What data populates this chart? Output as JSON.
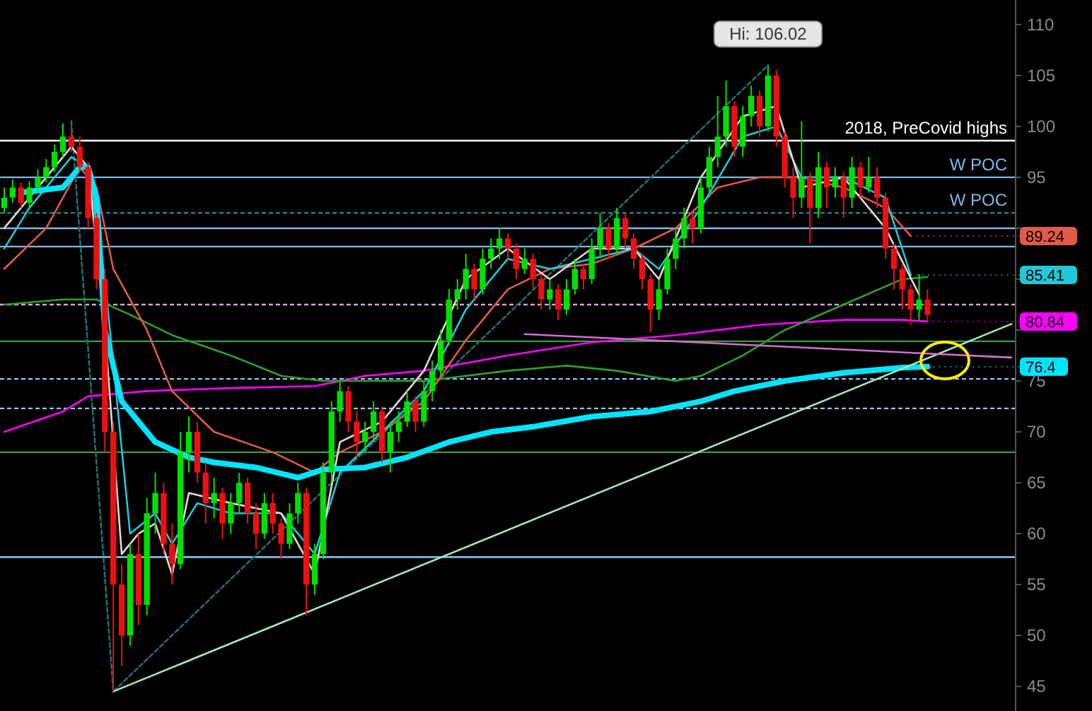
{
  "chart_data": {
    "type": "candlestick",
    "categories": [
      null,
      null,
      null,
      null,
      null,
      null,
      null,
      null,
      null,
      null,
      null,
      null,
      null,
      null,
      null,
      null,
      null,
      null,
      null,
      null,
      null,
      null,
      null,
      null,
      null,
      null,
      null,
      null,
      null,
      null,
      null,
      null,
      null,
      null,
      null,
      null,
      null,
      null,
      null,
      null,
      null,
      null,
      null,
      null,
      null,
      null,
      null,
      null,
      null,
      null,
      null,
      null,
      null,
      null,
      null,
      null,
      null,
      null,
      null,
      null,
      null,
      null,
      null,
      null,
      null,
      null,
      null,
      null,
      null,
      null,
      null,
      null,
      null,
      null,
      null,
      null,
      null,
      null,
      null,
      null,
      null,
      null,
      null,
      null,
      null,
      null,
      null,
      null,
      null,
      null,
      null,
      null,
      null,
      null,
      null,
      null,
      null,
      null,
      null,
      null,
      null,
      null,
      null,
      null,
      null,
      null,
      null,
      null,
      null,
      null,
      null,
      null,
      null,
      null,
      null,
      null,
      null,
      null,
      null,
      null,
      null
    ],
    "ohlc": [
      [
        92,
        94,
        91.5,
        93
      ],
      [
        93,
        94.8,
        92.5,
        94
      ],
      [
        94,
        94.5,
        92,
        92.5
      ],
      [
        92.5,
        94.6,
        92,
        94
      ],
      [
        94,
        95.8,
        93.5,
        95
      ],
      [
        95,
        96.8,
        94.5,
        96
      ],
      [
        96,
        98.2,
        95.5,
        97.5
      ],
      [
        97.5,
        100.3,
        97,
        99
      ],
      [
        99,
        100,
        97.5,
        98
      ],
      [
        98,
        99,
        95.5,
        96
      ],
      [
        96,
        96.5,
        90,
        91
      ],
      [
        91,
        91.5,
        84,
        85
      ],
      [
        85,
        86,
        68,
        70
      ],
      [
        70,
        71,
        44.5,
        55
      ],
      [
        55,
        57,
        47,
        50
      ],
      [
        50,
        59,
        49,
        58
      ],
      [
        58,
        60,
        51,
        53
      ],
      [
        53,
        63.5,
        52,
        62
      ],
      [
        62,
        66,
        60,
        64
      ],
      [
        64,
        65,
        58,
        59
      ],
      [
        59,
        61,
        55,
        57
      ],
      [
        57,
        70,
        56.5,
        68
      ],
      [
        68,
        71.5,
        66,
        70
      ],
      [
        70,
        71,
        65,
        66
      ],
      [
        66,
        67,
        61,
        63
      ],
      [
        63,
        65.5,
        61.5,
        64
      ],
      [
        64,
        64.5,
        59.5,
        61
      ],
      [
        61,
        64,
        60,
        63
      ],
      [
        63,
        66,
        62,
        65
      ],
      [
        65,
        65.5,
        61,
        62
      ],
      [
        62,
        63,
        58.5,
        60
      ],
      [
        60,
        64,
        59.5,
        63
      ],
      [
        63,
        64,
        60,
        61
      ],
      [
        61,
        61.5,
        57.5,
        59
      ],
      [
        59,
        63,
        58.5,
        62
      ],
      [
        62,
        65,
        61,
        64
      ],
      [
        64,
        64.5,
        52,
        55
      ],
      [
        55,
        59,
        54,
        58
      ],
      [
        58,
        67,
        57.5,
        66
      ],
      [
        66,
        73,
        65,
        72
      ],
      [
        72,
        75,
        71,
        74
      ],
      [
        74,
        74.5,
        70,
        71
      ],
      [
        71,
        72,
        67.5,
        69
      ],
      [
        69,
        71,
        68,
        70
      ],
      [
        70,
        73,
        69,
        72
      ],
      [
        72,
        72.5,
        67,
        68
      ],
      [
        68,
        71,
        66,
        70
      ],
      [
        70,
        72,
        69,
        71
      ],
      [
        71,
        74,
        70.5,
        73
      ],
      [
        73,
        73.5,
        70,
        71
      ],
      [
        71,
        75,
        70.5,
        74
      ],
      [
        74,
        77,
        73,
        76
      ],
      [
        76,
        80,
        75.5,
        79
      ],
      [
        79,
        84,
        78.5,
        83
      ],
      [
        83,
        85,
        82,
        84
      ],
      [
        84,
        87.5,
        83,
        86
      ],
      [
        86,
        86.5,
        83,
        84
      ],
      [
        84,
        88,
        83.5,
        87
      ],
      [
        87,
        89,
        86,
        88
      ],
      [
        88,
        90,
        87,
        89
      ],
      [
        89,
        89.5,
        87,
        88
      ],
      [
        88,
        88.5,
        85,
        86
      ],
      [
        86,
        88,
        85.5,
        87
      ],
      [
        87,
        87.5,
        84,
        85
      ],
      [
        85,
        85.5,
        82,
        83
      ],
      [
        83,
        85,
        82,
        84
      ],
      [
        84,
        84.5,
        81,
        82
      ],
      [
        82,
        85,
        81.5,
        84
      ],
      [
        84,
        87,
        83.5,
        86
      ],
      [
        86,
        86.5,
        84,
        85
      ],
      [
        85,
        89,
        84.5,
        88
      ],
      [
        88,
        91.5,
        87,
        90
      ],
      [
        90,
        90.5,
        87,
        88
      ],
      [
        88,
        92,
        87.5,
        91
      ],
      [
        91,
        91.5,
        88,
        89
      ],
      [
        89,
        89.5,
        86,
        87
      ],
      [
        87,
        87.5,
        84,
        85
      ],
      [
        85,
        85.5,
        79.8,
        82
      ],
      [
        82,
        85,
        81,
        84
      ],
      [
        84,
        88,
        83.5,
        87
      ],
      [
        87,
        90,
        86,
        89
      ],
      [
        89,
        92,
        88,
        91
      ],
      [
        91,
        91.5,
        88.5,
        90
      ],
      [
        90,
        95,
        89.5,
        94
      ],
      [
        94,
        98,
        93,
        97
      ],
      [
        97,
        103,
        96,
        99
      ],
      [
        99,
        104.5,
        98,
        102
      ],
      [
        102,
        102.5,
        97,
        98
      ],
      [
        98,
        102,
        97,
        101
      ],
      [
        101,
        104,
        100,
        103
      ],
      [
        103,
        103.5,
        99,
        100
      ],
      [
        100,
        106.02,
        99.5,
        105
      ],
      [
        105,
        105.5,
        98,
        99
      ],
      [
        99,
        99.5,
        94,
        95
      ],
      [
        95,
        96,
        91,
        93
      ],
      [
        93,
        100.5,
        92,
        95
      ],
      [
        95,
        95.5,
        88.5,
        92
      ],
      [
        92,
        97.5,
        91,
        96
      ],
      [
        96,
        96.5,
        92,
        94
      ],
      [
        94,
        96,
        93,
        95
      ],
      [
        95,
        95.5,
        91,
        93
      ],
      [
        93,
        97,
        92,
        96
      ],
      [
        96,
        96.5,
        93,
        94
      ],
      [
        94,
        97,
        93.5,
        95
      ],
      [
        95,
        96,
        92,
        93
      ],
      [
        93,
        93.5,
        87,
        88
      ],
      [
        88,
        88.5,
        84,
        86
      ],
      [
        86,
        86.5,
        82,
        84
      ],
      [
        84,
        84.5,
        80.5,
        82
      ],
      [
        82,
        85.5,
        81,
        83
      ],
      [
        83,
        84,
        81,
        81.5
      ],
      null,
      null,
      null,
      null,
      null,
      null,
      null,
      null,
      null,
      null
    ],
    "series": [
      {
        "type": "line",
        "color": "#1f6f6f",
        "line_style": "dashed",
        "values": [
          null,
          null,
          null,
          null,
          null,
          null,
          null,
          null,
          100.5,
          null,
          null,
          null,
          null,
          44.5,
          null,
          null,
          null,
          null,
          null,
          null,
          null,
          null,
          null,
          null,
          null,
          null,
          null,
          null,
          null,
          null,
          null,
          null,
          null,
          null,
          null,
          null,
          null,
          null,
          null,
          null,
          null,
          null,
          null,
          null,
          null,
          null,
          null,
          null,
          null,
          null,
          null,
          null,
          null,
          null,
          null,
          null,
          null,
          null,
          null,
          null,
          null,
          null,
          null,
          null,
          null,
          null,
          null,
          null,
          null,
          null,
          null,
          null,
          null,
          null,
          null,
          null,
          null,
          null,
          null,
          null,
          null,
          null,
          null,
          null,
          null,
          null,
          null,
          null,
          null,
          null,
          null,
          106,
          null,
          null,
          null,
          null,
          null,
          null,
          null,
          null,
          null,
          null,
          null,
          null,
          null,
          null,
          null,
          null,
          null,
          null,
          null,
          null,
          null,
          null,
          null,
          null,
          null,
          null,
          null,
          null,
          null
        ]
      },
      {
        "type": "line",
        "color": "#ff00ff",
        "values": [
          70,
          null,
          null,
          null,
          null,
          null,
          null,
          72,
          null,
          null,
          73.5,
          null,
          null,
          null,
          null,
          null,
          null,
          74,
          null,
          null,
          null,
          null,
          null,
          null,
          null,
          null,
          null,
          74.3,
          null,
          null,
          null,
          null,
          null,
          null,
          null,
          null,
          null,
          74.5,
          null,
          null,
          null,
          null,
          null,
          75.5,
          null,
          null,
          null,
          null,
          null,
          null,
          76,
          null,
          null,
          null,
          null,
          null,
          null,
          null,
          null,
          null,
          77.5,
          null,
          null,
          null,
          null,
          null,
          null,
          null,
          null,
          null,
          78.8,
          null,
          null,
          null,
          null,
          null,
          null,
          null,
          null,
          null,
          79.5,
          null,
          null,
          null,
          null,
          null,
          null,
          null,
          null,
          null,
          80.5,
          null,
          null,
          null,
          null,
          null,
          null,
          null,
          null,
          null,
          81,
          null,
          null,
          null,
          null,
          null,
          null,
          81,
          null,
          null,
          80.84,
          null,
          null,
          null,
          null,
          null,
          null,
          null,
          null,
          null,
          null
        ],
        "value_labels": [
          null,
          null,
          null,
          null,
          null,
          null,
          null,
          null,
          null,
          null,
          null,
          null,
          null,
          null,
          null,
          null,
          null,
          null,
          null,
          null,
          null,
          null,
          null,
          null,
          null,
          null,
          null,
          null,
          null,
          null,
          null,
          null,
          null,
          null,
          null,
          null,
          null,
          null,
          null,
          null,
          null,
          null,
          null,
          null,
          null,
          null,
          null,
          null,
          null,
          null,
          null,
          null,
          null,
          null,
          null,
          null,
          null,
          null,
          null,
          null,
          null,
          null,
          null,
          null,
          null,
          null,
          null,
          null,
          null,
          null,
          null,
          null,
          null,
          null,
          null,
          null,
          null,
          null,
          null,
          null,
          null,
          null,
          null,
          null,
          null,
          null,
          null,
          null,
          null,
          null,
          null,
          null,
          null,
          null,
          null,
          null,
          null,
          null,
          null,
          null,
          null,
          null,
          null,
          null,
          null,
          null,
          null,
          null,
          null,
          null,
          "80.84",
          null,
          null,
          null,
          null,
          null,
          null,
          null,
          null,
          null,
          null
        ]
      },
      {
        "type": "line",
        "color": "#2ea02e",
        "values": [
          82.5,
          null,
          null,
          null,
          null,
          null,
          null,
          83,
          null,
          null,
          null,
          83,
          null,
          null,
          null,
          81.5,
          null,
          null,
          null,
          null,
          79.5,
          null,
          null,
          null,
          null,
          null,
          null,
          77.5,
          null,
          null,
          null,
          null,
          null,
          75.5,
          null,
          null,
          null,
          null,
          75,
          null,
          null,
          null,
          null,
          75,
          null,
          null,
          null,
          null,
          null,
          null,
          75,
          null,
          null,
          null,
          null,
          null,
          null,
          null,
          null,
          null,
          76,
          null,
          null,
          null,
          null,
          null,
          null,
          76.5,
          null,
          null,
          null,
          null,
          null,
          76,
          null,
          null,
          null,
          null,
          null,
          null,
          75,
          null,
          null,
          75.5,
          null,
          null,
          null,
          null,
          77.5,
          null,
          null,
          null,
          null,
          80,
          null,
          null,
          null,
          null,
          null,
          null,
          82.5,
          null,
          null,
          null,
          null,
          null,
          null,
          85,
          null,
          null,
          85.2,
          null,
          null,
          null,
          null,
          null,
          null,
          null,
          null,
          null,
          null
        ]
      },
      {
        "type": "line",
        "color": "#e05a4a",
        "values": [
          86,
          null,
          null,
          null,
          null,
          90,
          null,
          null,
          null,
          96,
          null,
          94,
          null,
          86,
          null,
          null,
          null,
          80,
          null,
          null,
          74,
          null,
          null,
          null,
          null,
          70,
          null,
          null,
          null,
          null,
          null,
          null,
          68,
          null,
          null,
          null,
          null,
          66,
          null,
          null,
          68,
          null,
          null,
          null,
          null,
          70,
          null,
          null,
          null,
          null,
          73,
          null,
          null,
          null,
          null,
          79,
          null,
          null,
          null,
          null,
          84,
          null,
          null,
          null,
          null,
          86,
          null,
          null,
          null,
          null,
          86.5,
          null,
          null,
          null,
          null,
          88,
          null,
          null,
          null,
          null,
          90,
          null,
          null,
          null,
          null,
          94,
          null,
          null,
          null,
          null,
          95,
          null,
          null,
          null,
          null,
          95,
          null,
          null,
          null,
          null,
          94,
          null,
          null,
          null,
          null,
          92,
          null,
          null,
          89.24,
          null,
          null,
          null,
          null,
          null,
          null,
          null,
          null,
          null,
          null,
          null,
          null
        ],
        "value_labels": [
          null,
          null,
          null,
          null,
          null,
          null,
          null,
          null,
          null,
          null,
          null,
          null,
          null,
          null,
          null,
          null,
          null,
          null,
          null,
          null,
          null,
          null,
          null,
          null,
          null,
          null,
          null,
          null,
          null,
          null,
          null,
          null,
          null,
          null,
          null,
          null,
          null,
          null,
          null,
          null,
          null,
          null,
          null,
          null,
          null,
          null,
          null,
          null,
          null,
          null,
          null,
          null,
          null,
          null,
          null,
          null,
          null,
          null,
          null,
          null,
          null,
          null,
          null,
          null,
          null,
          null,
          null,
          null,
          null,
          null,
          null,
          null,
          null,
          null,
          null,
          null,
          null,
          null,
          null,
          null,
          null,
          null,
          null,
          null,
          null,
          null,
          null,
          null,
          null,
          null,
          null,
          null,
          null,
          null,
          null,
          null,
          null,
          null,
          null,
          null,
          null,
          null,
          null,
          null,
          null,
          null,
          null,
          null,
          "89.24",
          null,
          null,
          null,
          null,
          null,
          null,
          null,
          null,
          null,
          null,
          null,
          null
        ]
      },
      {
        "type": "line",
        "color": "#20c8d8",
        "values": [
          88,
          null,
          null,
          92,
          null,
          null,
          null,
          null,
          97,
          null,
          96,
          null,
          85,
          null,
          null,
          60,
          null,
          null,
          62,
          null,
          59,
          null,
          null,
          63,
          null,
          null,
          null,
          62,
          null,
          null,
          null,
          null,
          null,
          62,
          null,
          null,
          null,
          58,
          null,
          null,
          66,
          null,
          null,
          null,
          null,
          70,
          null,
          null,
          null,
          null,
          74,
          null,
          null,
          null,
          null,
          82,
          null,
          null,
          null,
          null,
          87,
          null,
          null,
          null,
          null,
          86,
          null,
          null,
          null,
          null,
          87,
          null,
          null,
          null,
          null,
          88,
          null,
          null,
          86,
          null,
          null,
          null,
          null,
          92,
          null,
          null,
          null,
          null,
          99,
          null,
          null,
          null,
          100,
          null,
          null,
          95,
          null,
          null,
          null,
          null,
          95,
          null,
          null,
          null,
          null,
          93,
          null,
          null,
          85.41,
          null,
          null,
          null,
          null,
          null,
          null,
          null,
          null,
          null,
          null,
          null,
          null
        ],
        "value_labels": [
          null,
          null,
          null,
          null,
          null,
          null,
          null,
          null,
          null,
          null,
          null,
          null,
          null,
          null,
          null,
          null,
          null,
          null,
          null,
          null,
          null,
          null,
          null,
          null,
          null,
          null,
          null,
          null,
          null,
          null,
          null,
          null,
          null,
          null,
          null,
          null,
          null,
          null,
          null,
          null,
          null,
          null,
          null,
          null,
          null,
          null,
          null,
          null,
          null,
          null,
          null,
          null,
          null,
          null,
          null,
          null,
          null,
          null,
          null,
          null,
          null,
          null,
          null,
          null,
          null,
          null,
          null,
          null,
          null,
          null,
          null,
          null,
          null,
          null,
          null,
          null,
          null,
          null,
          null,
          null,
          null,
          null,
          null,
          null,
          null,
          null,
          null,
          null,
          null,
          null,
          null,
          null,
          null,
          null,
          null,
          null,
          null,
          null,
          null,
          null,
          null,
          null,
          null,
          null,
          null,
          null,
          null,
          null,
          "85.41",
          null,
          null,
          null,
          null,
          null,
          null,
          null,
          null,
          null,
          null,
          null,
          null
        ]
      },
      {
        "type": "line",
        "color": "#e8d8d0",
        "values": [
          90,
          null,
          null,
          93,
          null,
          null,
          null,
          null,
          98,
          null,
          96,
          null,
          80,
          null,
          58,
          null,
          60,
          null,
          61,
          null,
          56,
          null,
          64,
          null,
          null,
          null,
          null,
          63,
          null,
          null,
          null,
          null,
          null,
          62,
          null,
          null,
          null,
          56,
          null,
          null,
          69,
          null,
          null,
          null,
          null,
          71,
          null,
          null,
          null,
          null,
          76,
          null,
          null,
          null,
          null,
          85,
          null,
          null,
          null,
          null,
          88,
          null,
          null,
          null,
          null,
          85,
          null,
          null,
          null,
          null,
          88,
          null,
          null,
          null,
          null,
          88,
          null,
          null,
          85,
          null,
          null,
          null,
          null,
          95,
          null,
          null,
          null,
          null,
          101,
          null,
          null,
          null,
          102,
          null,
          null,
          94,
          null,
          null,
          null,
          null,
          95,
          null,
          null,
          null,
          null,
          90,
          null,
          null,
          null,
          83.5,
          null,
          null,
          null,
          null,
          null,
          null,
          null,
          null,
          null,
          null,
          null
        ]
      },
      {
        "type": "line",
        "color": "#00e5ff",
        "values": [
          null,
          null,
          93.5,
          null,
          null,
          null,
          null,
          94,
          null,
          96,
          96,
          93,
          80,
          null,
          73,
          null,
          71,
          null,
          69,
          null,
          null,
          null,
          67.5,
          null,
          null,
          67,
          null,
          null,
          null,
          null,
          66.5,
          null,
          null,
          null,
          null,
          65.5,
          null,
          null,
          66.3,
          null,
          null,
          null,
          null,
          66.5,
          null,
          null,
          null,
          null,
          67.5,
          null,
          null,
          null,
          null,
          69,
          null,
          null,
          null,
          null,
          70,
          null,
          null,
          null,
          null,
          70.5,
          null,
          null,
          null,
          null,
          null,
          null,
          71.5,
          null,
          null,
          null,
          null,
          null,
          null,
          72,
          null,
          null,
          null,
          null,
          null,
          73,
          null,
          null,
          null,
          74,
          null,
          null,
          null,
          null,
          null,
          75,
          null,
          null,
          null,
          null,
          null,
          null,
          75.8,
          null,
          null,
          null,
          null,
          null,
          null,
          76.3,
          null,
          null,
          76.4,
          null,
          null,
          null,
          null,
          null,
          null,
          null,
          null,
          null,
          null
        ],
        "value_labels": [
          null,
          null,
          null,
          null,
          null,
          null,
          null,
          null,
          null,
          null,
          null,
          null,
          null,
          null,
          null,
          null,
          null,
          null,
          null,
          null,
          null,
          null,
          null,
          null,
          null,
          null,
          null,
          null,
          null,
          null,
          null,
          null,
          null,
          null,
          null,
          null,
          null,
          null,
          null,
          null,
          null,
          null,
          null,
          null,
          null,
          null,
          null,
          null,
          null,
          null,
          null,
          null,
          null,
          null,
          null,
          null,
          null,
          null,
          null,
          null,
          null,
          null,
          null,
          null,
          null,
          null,
          null,
          null,
          null,
          null,
          null,
          null,
          null,
          null,
          null,
          null,
          null,
          null,
          null,
          null,
          null,
          null,
          null,
          null,
          null,
          null,
          null,
          null,
          null,
          null,
          null,
          null,
          null,
          null,
          null,
          null,
          null,
          null,
          null,
          null,
          null,
          null,
          null,
          null,
          null,
          null,
          null,
          null,
          null,
          null,
          "76.4",
          null,
          null,
          null,
          null,
          null,
          null,
          null,
          null,
          null,
          null
        ]
      },
      {
        "type": "line",
        "color": "#a8e8b8",
        "values": [
          null,
          null,
          null,
          null,
          null,
          null,
          null,
          null,
          null,
          null,
          null,
          null,
          null,
          44.5,
          null,
          null,
          null,
          null,
          null,
          null,
          null,
          null,
          null,
          null,
          null,
          null,
          null,
          null,
          null,
          null,
          null,
          null,
          null,
          null,
          null,
          null,
          null,
          null,
          null,
          null,
          null,
          null,
          null,
          null,
          null,
          null,
          null,
          null,
          null,
          null,
          null,
          null,
          null,
          null,
          null,
          null,
          null,
          null,
          null,
          null,
          null,
          null,
          null,
          null,
          null,
          null,
          null,
          null,
          null,
          null,
          null,
          null,
          null,
          null,
          null,
          null,
          null,
          null,
          null,
          null,
          null,
          null,
          null,
          null,
          null,
          null,
          null,
          null,
          null,
          null,
          null,
          null,
          null,
          null,
          null,
          null,
          null,
          null,
          null,
          null,
          null,
          null,
          null,
          null,
          null,
          null,
          null,
          null,
          null,
          null,
          null,
          null,
          null,
          null,
          null,
          null,
          null,
          null,
          null,
          null,
          80.6
        ]
      },
      {
        "type": "line",
        "color": "#d070d0",
        "values": [
          null,
          null,
          null,
          null,
          null,
          null,
          null,
          null,
          null,
          null,
          null,
          null,
          null,
          null,
          null,
          null,
          null,
          null,
          null,
          null,
          null,
          null,
          null,
          null,
          null,
          null,
          null,
          null,
          null,
          null,
          null,
          null,
          null,
          null,
          null,
          null,
          null,
          null,
          null,
          null,
          null,
          null,
          null,
          null,
          null,
          null,
          null,
          null,
          null,
          null,
          null,
          null,
          null,
          null,
          null,
          null,
          null,
          null,
          null,
          null,
          null,
          null,
          79.6,
          null,
          null,
          null,
          null,
          null,
          null,
          null,
          null,
          null,
          null,
          null,
          null,
          null,
          null,
          null,
          null,
          null,
          null,
          null,
          null,
          null,
          null,
          null,
          null,
          null,
          null,
          null,
          null,
          null,
          null,
          null,
          null,
          null,
          null,
          null,
          null,
          null,
          null,
          null,
          null,
          null,
          null,
          null,
          null,
          null,
          null,
          null,
          null,
          null,
          null,
          null,
          null,
          null,
          null,
          null,
          null,
          null,
          77.3
        ]
      }
    ],
    "ylim": [
      43,
      112
    ],
    "yticks": [
      45,
      50,
      55,
      60,
      65,
      70,
      75,
      {
        "value": 80,
        "label": null
      },
      {
        "value": 85,
        "label": null
      },
      {
        "value": 90,
        "label": null
      },
      95,
      100,
      105,
      110
    ],
    "tick_labels": "y",
    "grid": false,
    "ref_lines": [
      {
        "axis": "y",
        "value": 98.6,
        "label": "2018, PreCovid highs",
        "color": "#ffffff"
      },
      {
        "axis": "y",
        "value": 95,
        "label": "W POC",
        "color": "#7fb8e6"
      },
      {
        "axis": "y",
        "value": 91.5,
        "label": "W POC",
        "color": "#1f8080",
        "line_style": "dashed"
      },
      {
        "axis": "y",
        "value": 90,
        "color": "#7fb8e6"
      },
      {
        "axis": "y",
        "value": 88.2,
        "color": "#7fb8e6"
      },
      {
        "axis": "y",
        "value": 82.5,
        "color": "#d8a0d8",
        "line_style": "dashed"
      },
      {
        "axis": "y",
        "value": 78.9,
        "color": "#3a9a3a"
      },
      {
        "axis": "y",
        "value": 75.2,
        "color": "#8ec8f0",
        "line_style": "dashed"
      },
      {
        "axis": "y",
        "value": 72.3,
        "color": "#8ec8f0",
        "line_style": "dashed"
      },
      {
        "axis": "y",
        "value": 68,
        "color": "#3a9a3a"
      },
      {
        "axis": "y",
        "value": 57.7,
        "color": "#8ec8f0"
      }
    ],
    "annotations": [
      {
        "text": "Hi: 106.02",
        "y": 106.02
      }
    ]
  }
}
